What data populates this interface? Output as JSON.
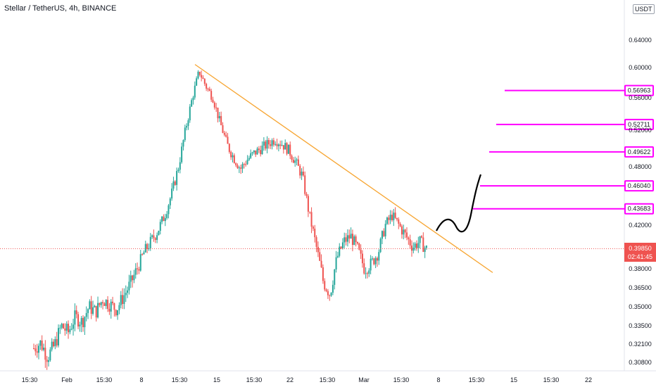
{
  "header": {
    "title": "Stellar / TetherUS, 4h, BINANCE",
    "quote_currency": "USDT"
  },
  "price_axis": {
    "tick_labels": [
      "0.64000",
      "0.60000",
      "0.56000",
      "0.52000",
      "0.48000",
      "0.42000",
      "0.38000",
      "0.36500",
      "0.35000",
      "0.33500",
      "0.32100",
      "0.30800"
    ]
  },
  "time_axis": {
    "labels": [
      "15:30",
      "Feb",
      "15:30",
      "8",
      "15:30",
      "15",
      "15:30",
      "22",
      "15:30",
      "Mar",
      "15:30",
      "8",
      "15:30",
      "15",
      "15:30",
      "22"
    ]
  },
  "current_price": {
    "value": "0.39850",
    "countdown": "02:41:45",
    "color": "#ef5350"
  },
  "levels": {
    "color": "#ff00ff",
    "labels": [
      "0.56963",
      "0.52711",
      "0.49622",
      "0.46040",
      "0.43683"
    ]
  },
  "trendline": {
    "color": "#f7a531",
    "from": [
      "Feb 10 15:30",
      0.6045
    ],
    "to": [
      "Mar 9",
      0.377
    ]
  },
  "projection": {
    "color": "#000000"
  },
  "colors": {
    "up": "#26a69a",
    "down": "#ef5350",
    "background": "#ffffff",
    "axis_text": "#131722"
  },
  "chart_data": {
    "type": "candlestick",
    "symbol": "XLMUSDT",
    "interval": "4h",
    "exchange": "BINANCE",
    "ylim": [
      0.305,
      0.655
    ],
    "approx_closes": [
      0.318,
      0.322,
      0.312,
      0.32,
      0.335,
      0.33,
      0.342,
      0.338,
      0.35,
      0.346,
      0.356,
      0.352,
      0.348,
      0.358,
      0.368,
      0.38,
      0.395,
      0.405,
      0.415,
      0.43,
      0.452,
      0.48,
      0.52,
      0.56,
      0.595,
      0.575,
      0.56,
      0.53,
      0.505,
      0.49,
      0.478,
      0.488,
      0.495,
      0.5,
      0.505,
      0.51,
      0.505,
      0.498,
      0.485,
      0.47,
      0.43,
      0.4,
      0.37,
      0.36,
      0.39,
      0.405,
      0.41,
      0.398,
      0.38,
      0.385,
      0.395,
      0.42,
      0.43,
      0.42,
      0.41,
      0.4,
      0.405,
      0.398
    ]
  }
}
